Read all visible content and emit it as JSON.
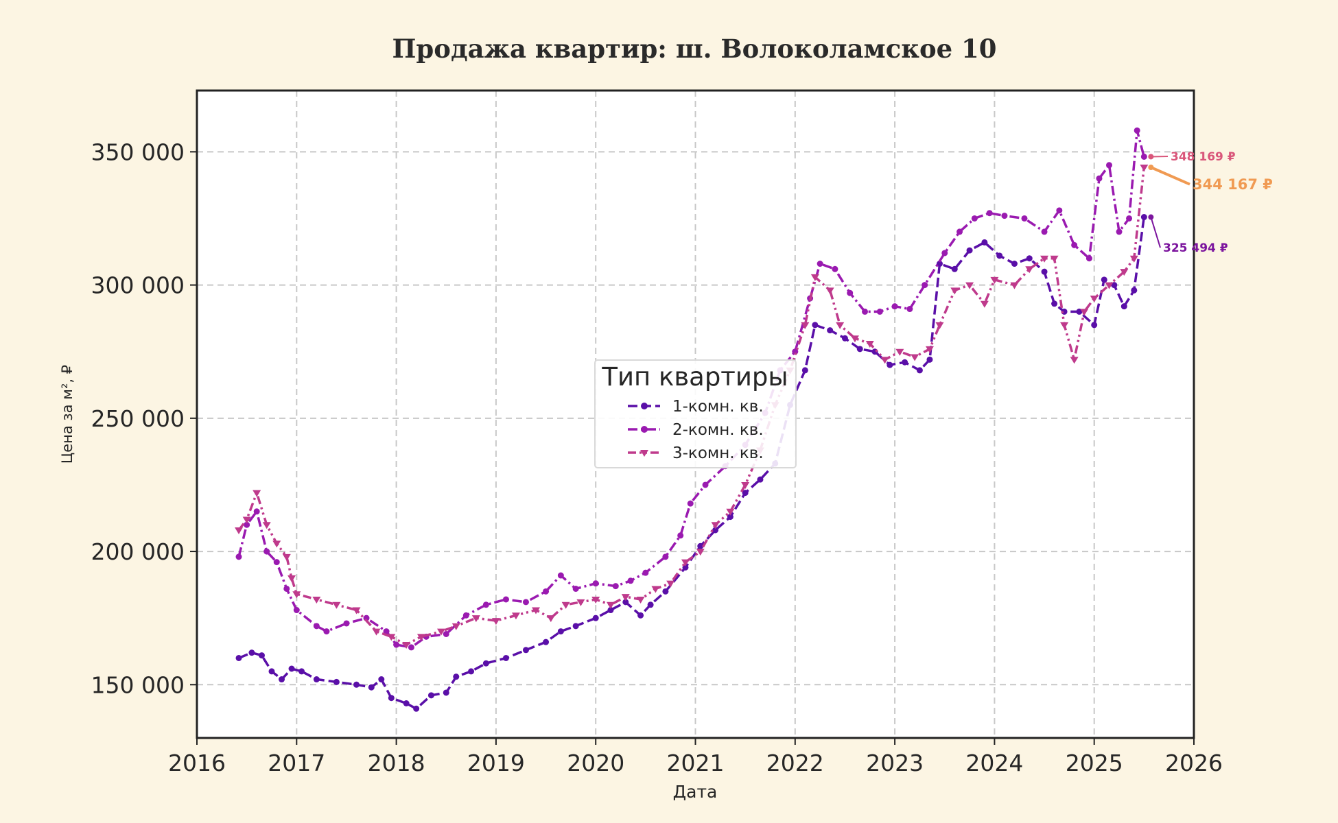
{
  "chart_data": {
    "type": "line",
    "title": "Продажа квартир: ш. Волоколамское 10",
    "xlabel": "Дата",
    "ylabel": "Цена за м², ₽",
    "xlim": [
      2016,
      2026
    ],
    "ylim": [
      130000,
      373000
    ],
    "x_ticks": [
      2016,
      2017,
      2018,
      2019,
      2020,
      2021,
      2022,
      2023,
      2024,
      2025,
      2026
    ],
    "x_tick_labels": [
      "2016",
      "2017",
      "2018",
      "2019",
      "2020",
      "2021",
      "2022",
      "2023",
      "2024",
      "2025",
      "2026"
    ],
    "y_ticks": [
      150000,
      200000,
      250000,
      300000,
      350000
    ],
    "y_tick_labels": [
      "150 000",
      "200 000",
      "250 000",
      "300 000",
      "350 000"
    ],
    "grid": true,
    "legend": {
      "title": "Тип квартиры",
      "placement": "center",
      "entries": [
        "1-комн. кв.",
        "2-комн. кв.",
        "3-комн. кв."
      ]
    },
    "series": [
      {
        "name": "1-комн. кв.",
        "color": "#5a0fa8",
        "marker": "circle",
        "points": [
          [
            2016.42,
            160000
          ],
          [
            2016.55,
            162000
          ],
          [
            2016.65,
            161000
          ],
          [
            2016.75,
            155000
          ],
          [
            2016.85,
            152000
          ],
          [
            2016.95,
            156000
          ],
          [
            2017.05,
            155000
          ],
          [
            2017.2,
            152000
          ],
          [
            2017.4,
            151000
          ],
          [
            2017.6,
            150000
          ],
          [
            2017.75,
            149000
          ],
          [
            2017.85,
            152000
          ],
          [
            2017.95,
            145000
          ],
          [
            2018.1,
            143000
          ],
          [
            2018.2,
            141000
          ],
          [
            2018.35,
            146000
          ],
          [
            2018.5,
            147000
          ],
          [
            2018.6,
            153000
          ],
          [
            2018.75,
            155000
          ],
          [
            2018.9,
            158000
          ],
          [
            2019.1,
            160000
          ],
          [
            2019.3,
            163000
          ],
          [
            2019.5,
            166000
          ],
          [
            2019.65,
            170000
          ],
          [
            2019.8,
            172000
          ],
          [
            2020.0,
            175000
          ],
          [
            2020.15,
            178000
          ],
          [
            2020.3,
            181000
          ],
          [
            2020.45,
            176000
          ],
          [
            2020.55,
            180000
          ],
          [
            2020.7,
            185000
          ],
          [
            2020.9,
            194000
          ],
          [
            2021.05,
            202000
          ],
          [
            2021.2,
            208000
          ],
          [
            2021.35,
            213000
          ],
          [
            2021.5,
            222000
          ],
          [
            2021.65,
            227000
          ],
          [
            2021.8,
            233000
          ],
          [
            2021.95,
            255000
          ],
          [
            2022.1,
            268000
          ],
          [
            2022.2,
            285000
          ],
          [
            2022.35,
            283000
          ],
          [
            2022.5,
            280000
          ],
          [
            2022.65,
            276000
          ],
          [
            2022.8,
            275000
          ],
          [
            2022.95,
            270000
          ],
          [
            2023.1,
            271000
          ],
          [
            2023.25,
            268000
          ],
          [
            2023.35,
            272000
          ],
          [
            2023.45,
            308000
          ],
          [
            2023.6,
            306000
          ],
          [
            2023.75,
            313000
          ],
          [
            2023.9,
            316000
          ],
          [
            2024.05,
            311000
          ],
          [
            2024.2,
            308000
          ],
          [
            2024.35,
            310000
          ],
          [
            2024.5,
            305000
          ],
          [
            2024.6,
            293000
          ],
          [
            2024.7,
            290000
          ],
          [
            2024.85,
            290000
          ],
          [
            2025.0,
            285000
          ],
          [
            2025.1,
            302000
          ],
          [
            2025.2,
            300000
          ],
          [
            2025.3,
            292000
          ],
          [
            2025.4,
            298000
          ],
          [
            2025.5,
            325494
          ]
        ]
      },
      {
        "name": "2-комн. кв.",
        "color": "#9a1ab0",
        "marker": "circle",
        "points": [
          [
            2016.42,
            198000
          ],
          [
            2016.5,
            210000
          ],
          [
            2016.6,
            215000
          ],
          [
            2016.7,
            200000
          ],
          [
            2016.8,
            196000
          ],
          [
            2016.9,
            186000
          ],
          [
            2017.0,
            178000
          ],
          [
            2017.2,
            172000
          ],
          [
            2017.3,
            170000
          ],
          [
            2017.5,
            173000
          ],
          [
            2017.7,
            175000
          ],
          [
            2017.9,
            170000
          ],
          [
            2018.0,
            165000
          ],
          [
            2018.15,
            164000
          ],
          [
            2018.3,
            168000
          ],
          [
            2018.5,
            169000
          ],
          [
            2018.7,
            176000
          ],
          [
            2018.9,
            180000
          ],
          [
            2019.1,
            182000
          ],
          [
            2019.3,
            181000
          ],
          [
            2019.5,
            185000
          ],
          [
            2019.65,
            191000
          ],
          [
            2019.8,
            186000
          ],
          [
            2020.0,
            188000
          ],
          [
            2020.2,
            187000
          ],
          [
            2020.35,
            189000
          ],
          [
            2020.5,
            192000
          ],
          [
            2020.7,
            198000
          ],
          [
            2020.85,
            206000
          ],
          [
            2020.95,
            218000
          ],
          [
            2021.1,
            225000
          ],
          [
            2021.3,
            232000
          ],
          [
            2021.5,
            240000
          ],
          [
            2021.7,
            252000
          ],
          [
            2021.85,
            268000
          ],
          [
            2022.0,
            275000
          ],
          [
            2022.15,
            295000
          ],
          [
            2022.25,
            308000
          ],
          [
            2022.4,
            306000
          ],
          [
            2022.55,
            297000
          ],
          [
            2022.7,
            290000
          ],
          [
            2022.85,
            290000
          ],
          [
            2023.0,
            292000
          ],
          [
            2023.15,
            291000
          ],
          [
            2023.3,
            300000
          ],
          [
            2023.5,
            312000
          ],
          [
            2023.65,
            320000
          ],
          [
            2023.8,
            325000
          ],
          [
            2023.95,
            327000
          ],
          [
            2024.1,
            326000
          ],
          [
            2024.3,
            325000
          ],
          [
            2024.5,
            320000
          ],
          [
            2024.65,
            328000
          ],
          [
            2024.8,
            315000
          ],
          [
            2024.95,
            310000
          ],
          [
            2025.05,
            340000
          ],
          [
            2025.15,
            345000
          ],
          [
            2025.25,
            320000
          ],
          [
            2025.35,
            325000
          ],
          [
            2025.43,
            358000
          ],
          [
            2025.5,
            348169
          ]
        ]
      },
      {
        "name": "3-комн. кв.",
        "color": "#bf3a8c",
        "marker": "triangle",
        "points": [
          [
            2016.42,
            208000
          ],
          [
            2016.5,
            212000
          ],
          [
            2016.6,
            222000
          ],
          [
            2016.7,
            210000
          ],
          [
            2016.8,
            203000
          ],
          [
            2016.9,
            198000
          ],
          [
            2016.95,
            190000
          ],
          [
            2017.0,
            184000
          ],
          [
            2017.2,
            182000
          ],
          [
            2017.4,
            180000
          ],
          [
            2017.6,
            178000
          ],
          [
            2017.8,
            170000
          ],
          [
            2017.95,
            168000
          ],
          [
            2018.1,
            165000
          ],
          [
            2018.25,
            168000
          ],
          [
            2018.45,
            170000
          ],
          [
            2018.6,
            172000
          ],
          [
            2018.8,
            175000
          ],
          [
            2019.0,
            174000
          ],
          [
            2019.2,
            176000
          ],
          [
            2019.4,
            178000
          ],
          [
            2019.55,
            175000
          ],
          [
            2019.7,
            180000
          ],
          [
            2019.85,
            181000
          ],
          [
            2020.0,
            182000
          ],
          [
            2020.15,
            180000
          ],
          [
            2020.3,
            183000
          ],
          [
            2020.45,
            182000
          ],
          [
            2020.6,
            186000
          ],
          [
            2020.75,
            188000
          ],
          [
            2020.9,
            196000
          ],
          [
            2021.05,
            200000
          ],
          [
            2021.2,
            210000
          ],
          [
            2021.35,
            215000
          ],
          [
            2021.5,
            225000
          ],
          [
            2021.65,
            238000
          ],
          [
            2021.8,
            255000
          ],
          [
            2021.95,
            268000
          ],
          [
            2022.1,
            285000
          ],
          [
            2022.2,
            303000
          ],
          [
            2022.35,
            298000
          ],
          [
            2022.45,
            285000
          ],
          [
            2022.6,
            280000
          ],
          [
            2022.75,
            278000
          ],
          [
            2022.9,
            272000
          ],
          [
            2023.05,
            275000
          ],
          [
            2023.2,
            273000
          ],
          [
            2023.35,
            276000
          ],
          [
            2023.45,
            285000
          ],
          [
            2023.6,
            298000
          ],
          [
            2023.75,
            300000
          ],
          [
            2023.9,
            293000
          ],
          [
            2024.0,
            302000
          ],
          [
            2024.2,
            300000
          ],
          [
            2024.35,
            306000
          ],
          [
            2024.5,
            310000
          ],
          [
            2024.6,
            310000
          ],
          [
            2024.7,
            285000
          ],
          [
            2024.8,
            272000
          ],
          [
            2024.9,
            290000
          ],
          [
            2025.0,
            295000
          ],
          [
            2025.15,
            300000
          ],
          [
            2025.3,
            305000
          ],
          [
            2025.4,
            310000
          ],
          [
            2025.5,
            344167
          ]
        ]
      }
    ],
    "annotations": [
      {
        "text": "348 169 ₽",
        "x": 2025.5,
        "y": 348169,
        "color": "#d9567a"
      },
      {
        "text": "344 167 ₽",
        "x": 2025.5,
        "y": 344167,
        "color": "#f09a52"
      },
      {
        "text": "325 494 ₽",
        "x": 2025.5,
        "y": 325494,
        "color": "#7c159e"
      }
    ]
  }
}
